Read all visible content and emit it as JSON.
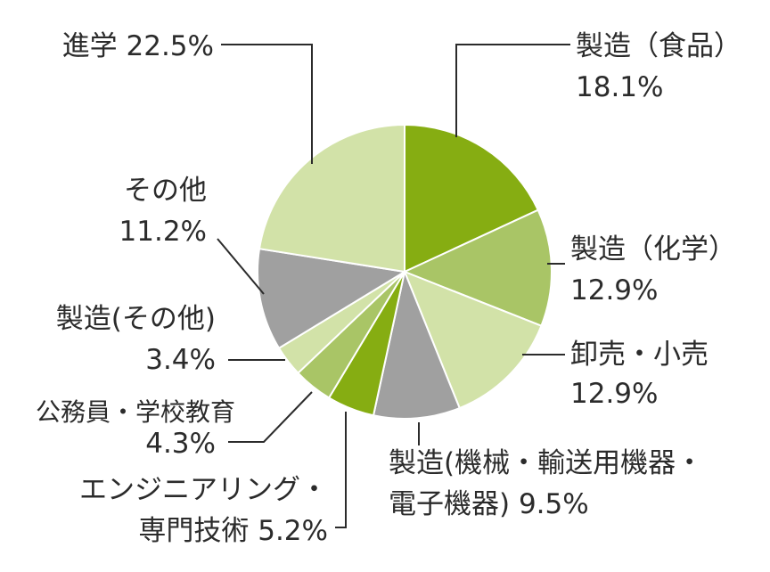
{
  "chart_data": {
    "type": "pie",
    "unit": "%",
    "slices": [
      {
        "name": "製造（食品）",
        "value": 18.1,
        "color": "#86ad12"
      },
      {
        "name": "製造（化学）",
        "value": 12.9,
        "color": "#a9c566"
      },
      {
        "name": "卸売・小売",
        "value": 12.9,
        "color": "#d2e2a8"
      },
      {
        "name": "製造(機械・輸送用機器・電子機器)",
        "value": 9.5,
        "color": "#a0a0a0"
      },
      {
        "name": "エンジニアリング・専門技術",
        "value": 5.2,
        "color": "#86ad12"
      },
      {
        "name": "公務員・学校教育",
        "value": 4.3,
        "color": "#a9c566"
      },
      {
        "name": "製造(その他)",
        "value": 3.4,
        "color": "#d2e2a8"
      },
      {
        "name": "その他",
        "value": 11.2,
        "color": "#a0a0a0"
      },
      {
        "name": "進学",
        "value": 22.5,
        "color": "#d2e2a8"
      }
    ],
    "labels": [
      {
        "line1": "製造（食品）",
        "line2": "18.1%"
      },
      {
        "line1": "製造（化学）",
        "line2": "12.9%"
      },
      {
        "line1": "卸売・小売",
        "line2": "12.9%"
      },
      {
        "line1": "製造(機械・輸送用機器・",
        "line2": "電子機器) 9.5%"
      },
      {
        "line1": "エンジニアリング・",
        "line2": "専門技術 5.2%"
      },
      {
        "line1": "公務員・学校教育",
        "line2": "4.3%"
      },
      {
        "line1": "製造(その他)",
        "line2": "3.4%"
      },
      {
        "line1": "その他",
        "line2": "11.2%"
      },
      {
        "line1": "進学 22.5%",
        "line2": ""
      }
    ]
  }
}
